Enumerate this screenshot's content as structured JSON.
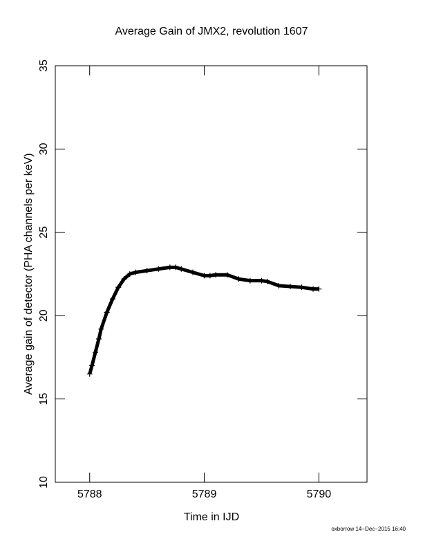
{
  "chart_data": {
    "type": "line",
    "title": "Average Gain of JMX2, revolution 1607",
    "x_label": "Time in IJD",
    "y_label": "Average gain of detector (PHA channels per keV)",
    "footer": "oxborrow 14−Dec−2015 16:40",
    "x": [
      5788.0,
      5788.02,
      5788.05,
      5788.08,
      5788.1,
      5788.15,
      5788.2,
      5788.25,
      5788.3,
      5788.35,
      5788.4,
      5788.5,
      5788.6,
      5788.7,
      5788.75,
      5788.8,
      5788.9,
      5789.0,
      5789.05,
      5789.1,
      5789.2,
      5789.3,
      5789.4,
      5789.5,
      5789.55,
      5789.65,
      5789.75,
      5789.85,
      5789.95,
      5790.0
    ],
    "series": [
      {
        "name": "Average gain",
        "color": "#000000",
        "marker": "+",
        "values": [
          16.5,
          17.0,
          17.8,
          18.6,
          19.2,
          20.2,
          21.0,
          21.7,
          22.2,
          22.5,
          22.6,
          22.7,
          22.8,
          22.9,
          22.9,
          22.8,
          22.6,
          22.4,
          22.4,
          22.45,
          22.45,
          22.2,
          22.1,
          22.1,
          22.05,
          21.8,
          21.75,
          21.7,
          21.6,
          21.6
        ]
      }
    ],
    "xlim": [
      5787.7,
      5790.42
    ],
    "xticks": [
      5788,
      5789,
      5790
    ],
    "ylim": [
      10,
      35
    ],
    "yticks": [
      10,
      15,
      20,
      25,
      30,
      35
    ]
  }
}
